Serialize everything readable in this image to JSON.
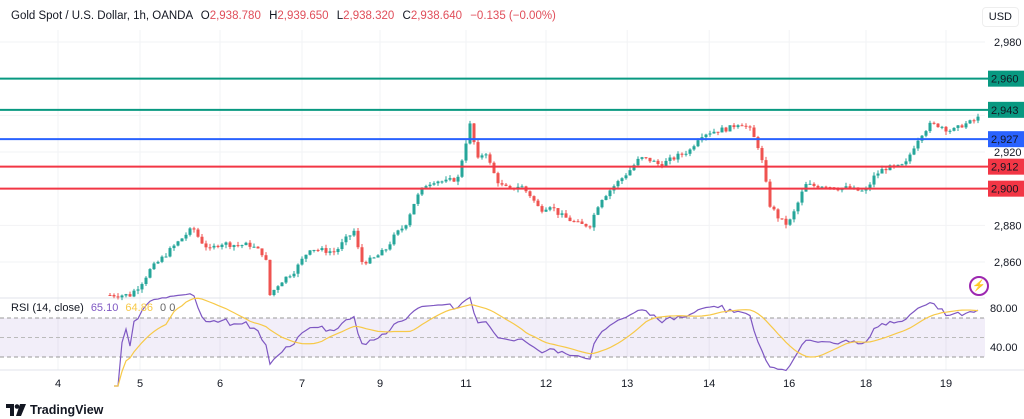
{
  "header": {
    "symbol": "Gold Spot / U.S. Dollar, 1h, OANDA",
    "o_label": "O",
    "o": "2,938.780",
    "h_label": "H",
    "h": "2,939.650",
    "l_label": "L",
    "l": "2,938.320",
    "c_label": "C",
    "c": "2,938.640",
    "change": "−0.135 (−0.00%)"
  },
  "currency": "USD",
  "rsi": {
    "title": "RSI (14, close)",
    "value": "65.10",
    "ma_value": "64.86",
    "extra1": "0",
    "extra2": "0",
    "ticks": [
      "80.00",
      "40.00"
    ]
  },
  "brand": "TradingView",
  "colors": {
    "up": "#26a69a",
    "down": "#ef5350",
    "green_level": "#089981",
    "blue_level": "#2962ff",
    "red_level": "#f23645",
    "rsi": "#7e57c2",
    "rsi_ma": "#f7c948"
  },
  "chart_data": {
    "type": "candlestick",
    "title": "Gold Spot / U.S. Dollar, 1h, OANDA",
    "ylim": [
      2840,
      2990
    ],
    "y_ticks": [
      {
        "v": 2980,
        "label": "2,980"
      },
      {
        "v": 2920,
        "label": "2,920"
      },
      {
        "v": 2880,
        "label": "2,880"
      },
      {
        "v": 2860,
        "label": "2,860"
      }
    ],
    "x_ticks": [
      {
        "t": -13,
        "label": "4"
      },
      {
        "t": 7.5,
        "label": "5"
      },
      {
        "t": 27.5,
        "label": "6"
      },
      {
        "t": 48,
        "label": "7"
      },
      {
        "t": 67.5,
        "label": "9"
      },
      {
        "t": 89,
        "label": "11"
      },
      {
        "t": 109,
        "label": "12"
      },
      {
        "t": 129.3,
        "label": "13"
      },
      {
        "t": 149.8,
        "label": "14"
      },
      {
        "t": 169.8,
        "label": "16"
      },
      {
        "t": 189,
        "label": "18"
      },
      {
        "t": 209,
        "label": "19"
      }
    ],
    "levels": [
      {
        "value": 2960,
        "label": "2,960",
        "color": "green"
      },
      {
        "value": 2943,
        "label": "2,943",
        "color": "green"
      },
      {
        "value": 2927,
        "label": "2,927",
        "color": "blue"
      },
      {
        "value": 2912,
        "label": "2,912",
        "color": "red"
      },
      {
        "value": 2900,
        "label": "2,900",
        "color": "red"
      }
    ],
    "price_path": [
      [
        0,
        2842
      ],
      [
        5,
        2842
      ],
      [
        7.5,
        2847.5
      ],
      [
        10,
        2855.6
      ],
      [
        13.8,
        2863.8
      ],
      [
        16.3,
        2869.3
      ],
      [
        18.8,
        2874.7
      ],
      [
        20.8,
        2878.5
      ],
      [
        22.5,
        2872
      ],
      [
        25,
        2866.5
      ],
      [
        27.5,
        2870.4
      ],
      [
        31.3,
        2869.3
      ],
      [
        35,
        2869.3
      ],
      [
        38.8,
        2863.8
      ],
      [
        40,
        2842
      ],
      [
        42.5,
        2849
      ],
      [
        46.3,
        2855.6
      ],
      [
        50,
        2867.6
      ],
      [
        52.5,
        2866.5
      ],
      [
        56.3,
        2865.5
      ],
      [
        58.8,
        2872
      ],
      [
        61.3,
        2877.5
      ],
      [
        62.5,
        2860
      ],
      [
        65.5,
        2861.1
      ],
      [
        68.8,
        2866.5
      ],
      [
        71.3,
        2874.7
      ],
      [
        73.8,
        2880.2
      ],
      [
        76.3,
        2893.8
      ],
      [
        78.8,
        2902
      ],
      [
        81.3,
        2904.7
      ],
      [
        83.8,
        2903.6
      ],
      [
        87,
        2905.8
      ],
      [
        88.5,
        2921.1
      ],
      [
        90,
        2934.7
      ],
      [
        92,
        2915.6
      ],
      [
        93.8,
        2921.1
      ],
      [
        95.5,
        2910.2
      ],
      [
        97.5,
        2902
      ],
      [
        100,
        2899.3
      ],
      [
        102.5,
        2902
      ],
      [
        105,
        2896.5
      ],
      [
        107.5,
        2888.4
      ],
      [
        110,
        2891.1
      ],
      [
        112.5,
        2885.6
      ],
      [
        115,
        2882.9
      ],
      [
        117.5,
        2880.2
      ],
      [
        120,
        2880.2
      ],
      [
        122.5,
        2893.8
      ],
      [
        125,
        2899.3
      ],
      [
        127.5,
        2904.7
      ],
      [
        130,
        2910.2
      ],
      [
        132.5,
        2916.7
      ],
      [
        135,
        2915.6
      ],
      [
        137.5,
        2912.9
      ],
      [
        140,
        2915.6
      ],
      [
        142.5,
        2918.4
      ],
      [
        145,
        2921.1
      ],
      [
        147.5,
        2929.3
      ],
      [
        150,
        2930.9
      ],
      [
        152.5,
        2932
      ],
      [
        155,
        2933.1
      ],
      [
        157.5,
        2936.4
      ],
      [
        160,
        2932
      ],
      [
        162.5,
        2921.1
      ],
      [
        163.8,
        2904.7
      ],
      [
        165,
        2891.1
      ],
      [
        167.5,
        2882.9
      ],
      [
        169.5,
        2880.2
      ],
      [
        171.3,
        2888.4
      ],
      [
        173.8,
        2902
      ],
      [
        176.3,
        2901.5
      ],
      [
        178.8,
        2902
      ],
      [
        181.3,
        2900.4
      ],
      [
        183.8,
        2900.4
      ],
      [
        186.3,
        2899.3
      ],
      [
        188.8,
        2898.2
      ],
      [
        191.3,
        2907.5
      ],
      [
        193.8,
        2911.3
      ],
      [
        196.3,
        2911.3
      ],
      [
        198.8,
        2912.9
      ],
      [
        200.5,
        2921.1
      ],
      [
        202.5,
        2929.3
      ],
      [
        205,
        2934.7
      ],
      [
        207.5,
        2934.7
      ],
      [
        209.5,
        2932
      ],
      [
        211.3,
        2932
      ],
      [
        213,
        2934.7
      ],
      [
        215.5,
        2936.4
      ],
      [
        217,
        2938.5
      ]
    ]
  }
}
